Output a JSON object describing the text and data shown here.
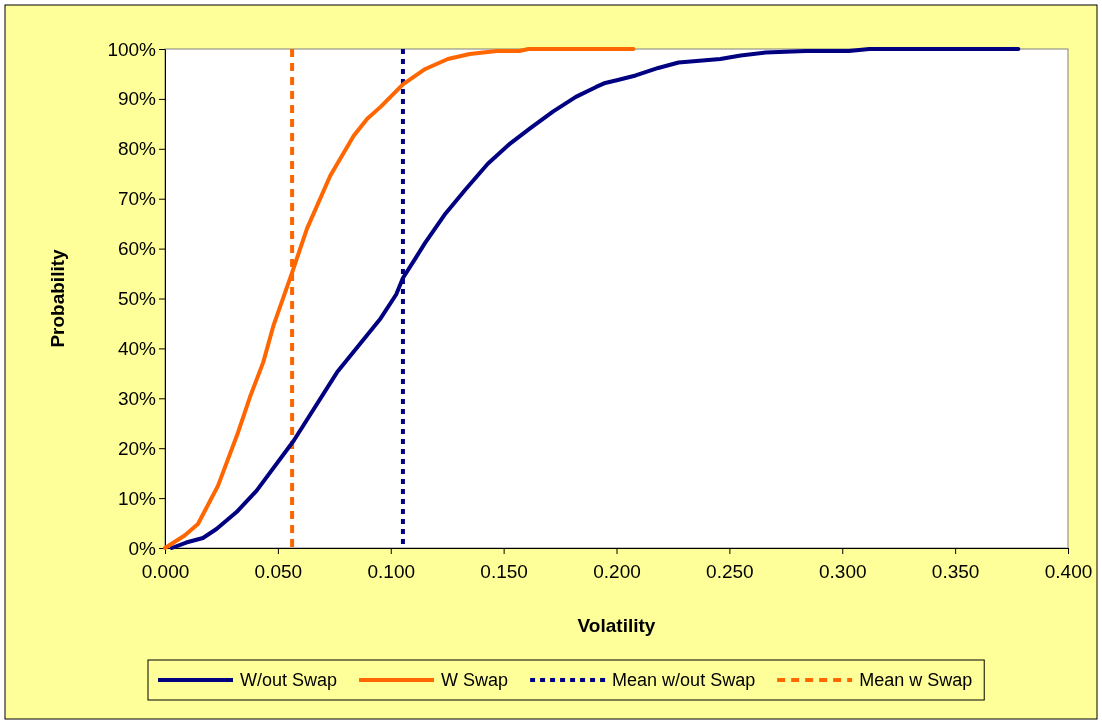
{
  "chart_data": {
    "type": "line",
    "xlabel": "Volatility",
    "ylabel": "Probability",
    "xlim": [
      0,
      0.4
    ],
    "xticks": [
      {
        "value": 0,
        "label": "0.000"
      },
      {
        "value": 0.05,
        "label": "0.050"
      },
      {
        "value": 0.1,
        "label": "0.100"
      },
      {
        "value": 0.15,
        "label": "0.150"
      },
      {
        "value": 0.2,
        "label": "0.200"
      },
      {
        "value": 0.25,
        "label": "0.250"
      },
      {
        "value": 0.3,
        "label": "0.300"
      },
      {
        "value": 0.35,
        "label": "0.350"
      },
      {
        "value": 0.4,
        "label": "0.400"
      }
    ],
    "ylim": [
      0,
      100
    ],
    "yticks": [
      {
        "value": 0,
        "label": "0%"
      },
      {
        "value": 10,
        "label": "10%"
      },
      {
        "value": 20,
        "label": "20%"
      },
      {
        "value": 30,
        "label": "30%"
      },
      {
        "value": 40,
        "label": "40%"
      },
      {
        "value": 50,
        "label": "50%"
      },
      {
        "value": 60,
        "label": "60%"
      },
      {
        "value": 70,
        "label": "70%"
      },
      {
        "value": 80,
        "label": "80%"
      },
      {
        "value": 90,
        "label": "90%"
      },
      {
        "value": 100,
        "label": "100%"
      }
    ],
    "grid": false,
    "legend": "bottom",
    "marker": "none",
    "line_style": "solid",
    "series": [
      {
        "name": "W/out Swap",
        "color": "#000080",
        "x": [
          0.003,
          0.0094,
          0.0168,
          0.0228,
          0.0317,
          0.0406,
          0.057,
          0.0762,
          0.0955,
          0.1024,
          0.1054,
          0.111,
          0.1153,
          0.1242,
          0.1332,
          0.143,
          0.153,
          0.162,
          0.172,
          0.182,
          0.191,
          0.195,
          0.2006,
          0.2085,
          0.2185,
          0.2275,
          0.246,
          0.255,
          0.266,
          0.284,
          0.303,
          0.312,
          0.378
        ],
        "values": [
          0,
          1.1,
          2,
          3.8,
          7.2,
          11.5,
          21.5,
          35.2,
          46,
          50.8,
          54.1,
          58.1,
          61.2,
          67,
          71.9,
          77,
          81.1,
          84.2,
          87.5,
          90.4,
          92.4,
          93.2,
          93.8,
          94.7,
          96.2,
          97.3,
          98,
          98.7,
          99.3,
          99.6,
          99.6,
          100,
          100
        ]
      },
      {
        "name": "W Swap",
        "color": "#ff6600",
        "x": [
          0,
          0.0087,
          0.0146,
          0.0235,
          0.0324,
          0.0376,
          0.0435,
          0.048,
          0.0563,
          0.0629,
          0.0732,
          0.0836,
          0.0896,
          0.0955,
          0.1054,
          0.1153,
          0.1253,
          0.135,
          0.147,
          0.157,
          0.161,
          0.2075
        ],
        "values": [
          0,
          2.5,
          4.8,
          12.5,
          23.2,
          30.2,
          37.2,
          44.5,
          55.2,
          64,
          74.6,
          82.6,
          86,
          88.4,
          92.9,
          96,
          98,
          99,
          99.6,
          99.6,
          100,
          100
        ]
      }
    ],
    "ref_lines": [
      {
        "axis": "x",
        "value": 0.1054,
        "label": "Mean w/out Swap",
        "color": "#000080",
        "line_style": "dotted"
      },
      {
        "axis": "x",
        "value": 0.0563,
        "label": "Mean w Swap",
        "color": "#ff6600",
        "line_style": "dashed"
      }
    ]
  }
}
